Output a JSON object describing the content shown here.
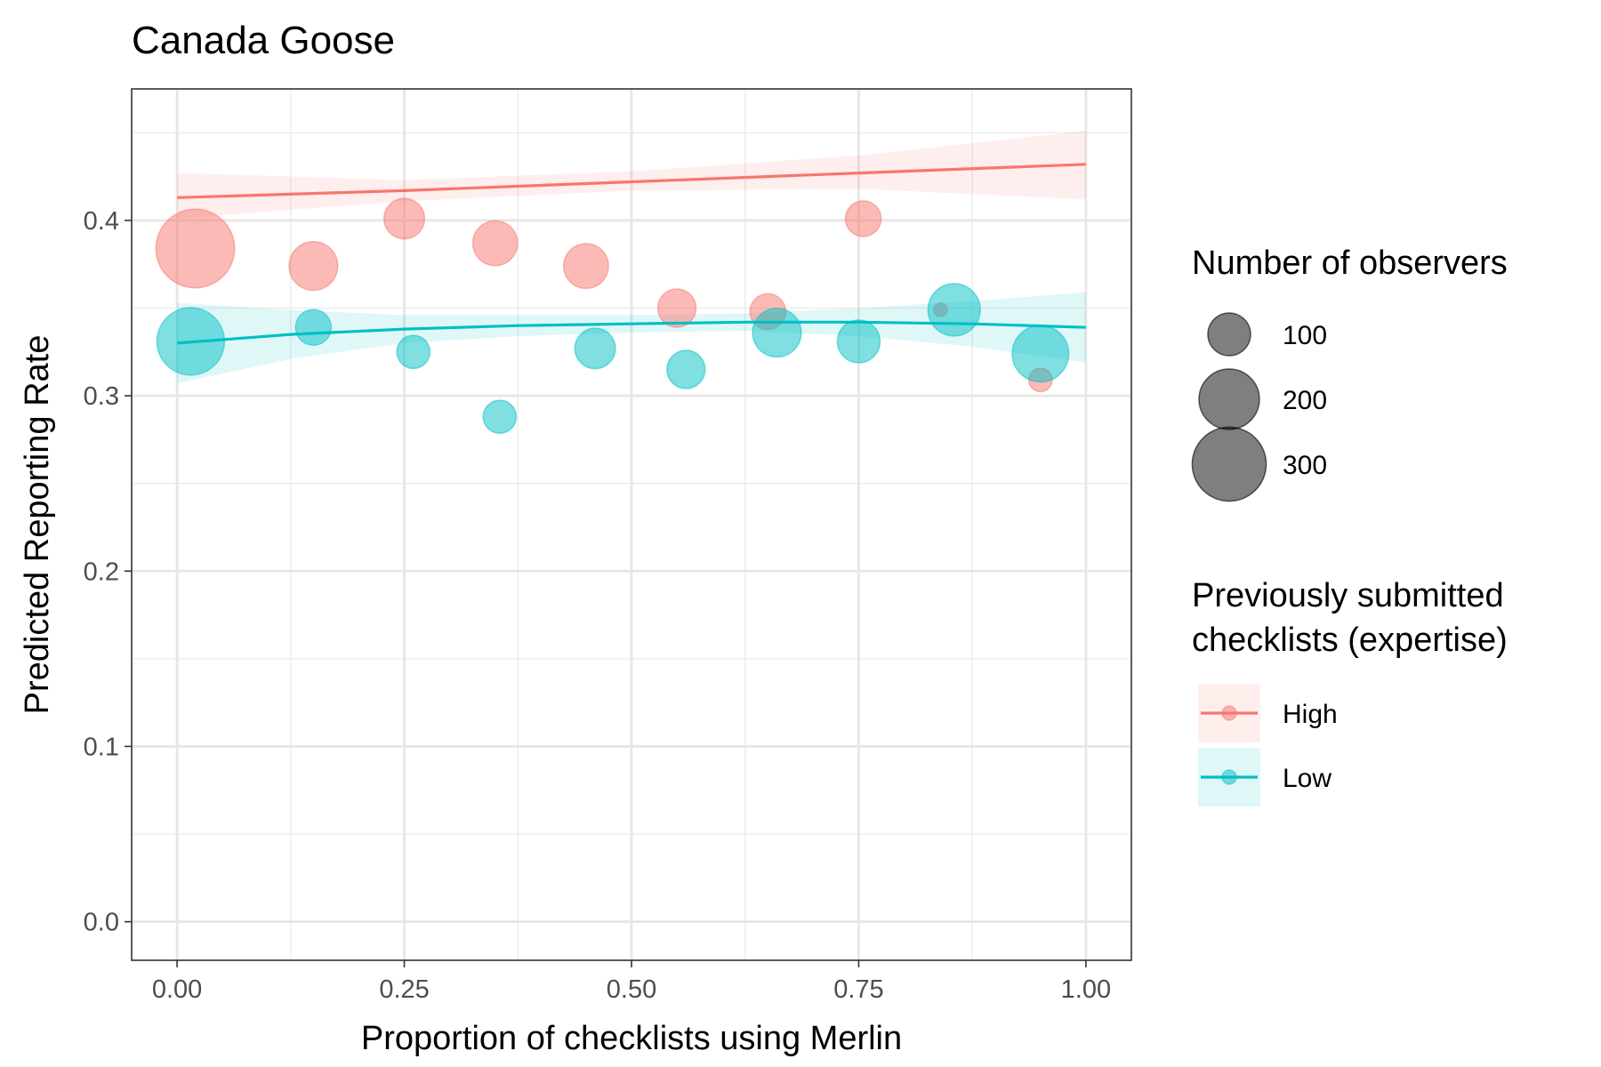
{
  "chart_data": {
    "type": "scatter",
    "title": "Canada Goose",
    "xlabel": "Proportion of checklists using Merlin",
    "ylabel": "Predicted Reporting Rate",
    "xlim": [
      -0.05,
      1.05
    ],
    "ylim": [
      -0.022,
      0.475
    ],
    "x_ticks": [
      0.0,
      0.25,
      0.5,
      0.75,
      1.0
    ],
    "x_tick_labels": [
      "0.00",
      "0.25",
      "0.50",
      "0.75",
      "1.00"
    ],
    "y_ticks": [
      0.0,
      0.1,
      0.2,
      0.3,
      0.4
    ],
    "y_tick_labels": [
      "0.0",
      "0.1",
      "0.2",
      "0.3",
      "0.4"
    ],
    "grid": true,
    "legend_position": "right",
    "size_legend": {
      "title": "Number of observers",
      "entries": [
        {
          "label": "100",
          "value": 100
        },
        {
          "label": "200",
          "value": 200
        },
        {
          "label": "300",
          "value": 300
        }
      ]
    },
    "color_legend": {
      "title_lines": [
        "Previously submitted",
        "checklists (expertise)"
      ],
      "entries": [
        {
          "label": "High",
          "color": "#F8766D"
        },
        {
          "label": "Low",
          "color": "#00BFC4"
        }
      ]
    },
    "series": [
      {
        "name": "High",
        "color": "#F8766D",
        "points": [
          {
            "x": 0.02,
            "y": 0.384,
            "observers": 340
          },
          {
            "x": 0.15,
            "y": 0.374,
            "observers": 130
          },
          {
            "x": 0.25,
            "y": 0.401,
            "observers": 90
          },
          {
            "x": 0.35,
            "y": 0.387,
            "observers": 110
          },
          {
            "x": 0.45,
            "y": 0.374,
            "observers": 110
          },
          {
            "x": 0.55,
            "y": 0.35,
            "observers": 80
          },
          {
            "x": 0.65,
            "y": 0.348,
            "observers": 70
          },
          {
            "x": 0.755,
            "y": 0.401,
            "observers": 70
          },
          {
            "x": 0.84,
            "y": 0.349,
            "observers": 10
          },
          {
            "x": 0.95,
            "y": 0.309,
            "observers": 30
          }
        ],
        "fit": {
          "x": [
            0.0,
            0.25,
            0.5,
            0.75,
            1.0
          ],
          "y": [
            0.413,
            0.417,
            0.422,
            0.427,
            0.432
          ],
          "lower": [
            0.401,
            0.411,
            0.417,
            0.418,
            0.412
          ],
          "upper": [
            0.427,
            0.423,
            0.428,
            0.437,
            0.451
          ]
        }
      },
      {
        "name": "Low",
        "color": "#00BFC4",
        "points": [
          {
            "x": 0.015,
            "y": 0.331,
            "observers": 250
          },
          {
            "x": 0.15,
            "y": 0.339,
            "observers": 70
          },
          {
            "x": 0.26,
            "y": 0.325,
            "observers": 60
          },
          {
            "x": 0.355,
            "y": 0.288,
            "observers": 60
          },
          {
            "x": 0.46,
            "y": 0.327,
            "observers": 90
          },
          {
            "x": 0.56,
            "y": 0.315,
            "observers": 80
          },
          {
            "x": 0.66,
            "y": 0.336,
            "observers": 130
          },
          {
            "x": 0.75,
            "y": 0.331,
            "observers": 100
          },
          {
            "x": 0.855,
            "y": 0.349,
            "observers": 150
          },
          {
            "x": 0.95,
            "y": 0.324,
            "observers": 175
          }
        ],
        "fit": {
          "x": [
            0.0,
            0.125,
            0.25,
            0.375,
            0.5,
            0.625,
            0.75,
            0.875,
            1.0
          ],
          "y": [
            0.33,
            0.335,
            0.338,
            0.34,
            0.341,
            0.342,
            0.342,
            0.341,
            0.339
          ],
          "lower": [
            0.307,
            0.321,
            0.33,
            0.334,
            0.336,
            0.337,
            0.334,
            0.328,
            0.319
          ],
          "upper": [
            0.353,
            0.349,
            0.346,
            0.346,
            0.346,
            0.347,
            0.35,
            0.354,
            0.359
          ]
        }
      }
    ]
  }
}
